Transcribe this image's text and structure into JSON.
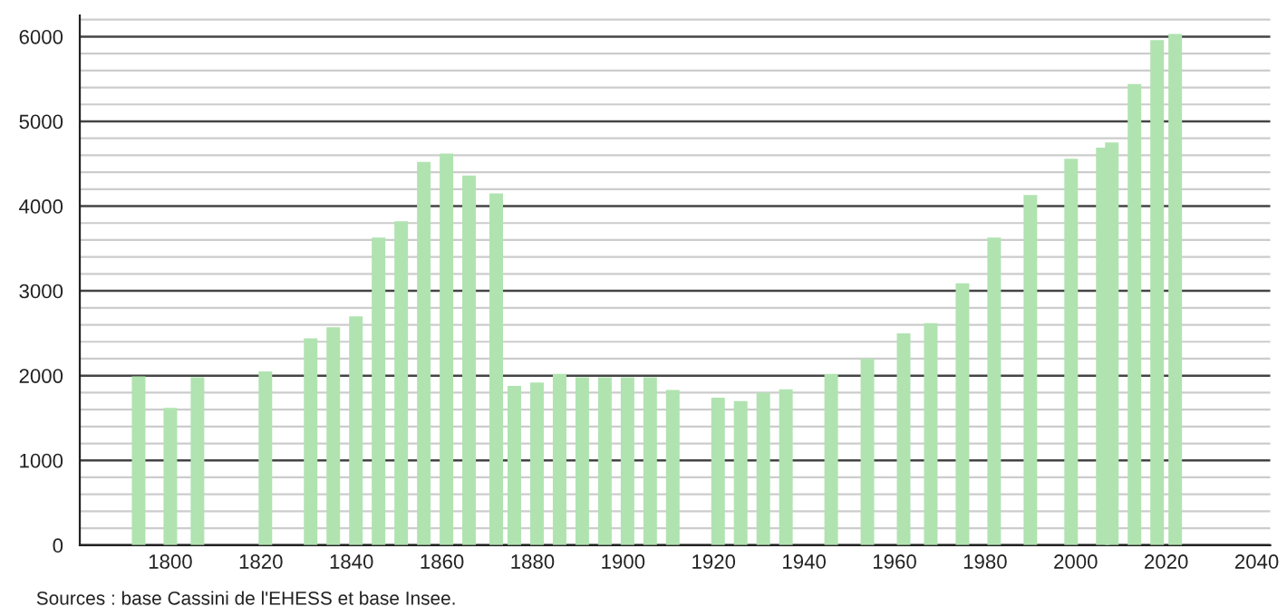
{
  "chart_data": {
    "type": "bar",
    "x": [
      1793,
      1800,
      1806,
      1821,
      1831,
      1836,
      1841,
      1846,
      1851,
      1856,
      1861,
      1866,
      1872,
      1876,
      1881,
      1886,
      1891,
      1896,
      1901,
      1906,
      1911,
      1921,
      1926,
      1931,
      1936,
      1946,
      1954,
      1962,
      1968,
      1975,
      1982,
      1990,
      1999,
      2006,
      2008,
      2013,
      2018,
      2022
    ],
    "series": [
      {
        "color": "#b0e3b0",
        "values": [
          1990,
          1620,
          1980,
          2050,
          2440,
          2570,
          2700,
          3630,
          3820,
          4520,
          4620,
          4360,
          4150,
          1880,
          1920,
          2020,
          1980,
          1980,
          1980,
          1980,
          1830,
          1740,
          1700,
          1800,
          1840,
          2020,
          2200,
          2500,
          2620,
          3090,
          3630,
          4130,
          4560,
          4690,
          4750,
          5440,
          5960,
          6030
        ]
      }
    ],
    "xlim": [
      1780,
      2043
    ],
    "ylim": [
      0,
      6250
    ],
    "xticks": [
      1800,
      1820,
      1840,
      1860,
      1880,
      1900,
      1920,
      1940,
      1960,
      1980,
      2000,
      2020,
      2040
    ],
    "yticks": [
      0,
      {
        "value": 200,
        "label": null
      },
      {
        "value": 400,
        "label": null
      },
      {
        "value": 600,
        "label": null
      },
      {
        "value": 800,
        "label": null
      },
      1000,
      {
        "value": 1200,
        "label": null
      },
      {
        "value": 1400,
        "label": null
      },
      {
        "value": 1600,
        "label": null
      },
      {
        "value": 1800,
        "label": null
      },
      2000,
      {
        "value": 2200,
        "label": null
      },
      {
        "value": 2400,
        "label": null
      },
      {
        "value": 2600,
        "label": null
      },
      {
        "value": 2800,
        "label": null
      },
      3000,
      {
        "value": 3200,
        "label": null
      },
      {
        "value": 3400,
        "label": null
      },
      {
        "value": 3600,
        "label": null
      },
      {
        "value": 3800,
        "label": null
      },
      4000,
      {
        "value": 4200,
        "label": null
      },
      {
        "value": 4400,
        "label": null
      },
      {
        "value": 4600,
        "label": null
      },
      {
        "value": 4800,
        "label": null
      },
      5000,
      {
        "value": 5200,
        "label": null
      },
      {
        "value": 5400,
        "label": null
      },
      {
        "value": 5600,
        "label": null
      },
      {
        "value": 5800,
        "label": null
      },
      6000,
      {
        "value": 6200,
        "label": null
      }
    ],
    "grid": "y",
    "legend": false,
    "annotations": [
      "Sources : base Cassini de l'EHESS et base Insee."
    ]
  }
}
